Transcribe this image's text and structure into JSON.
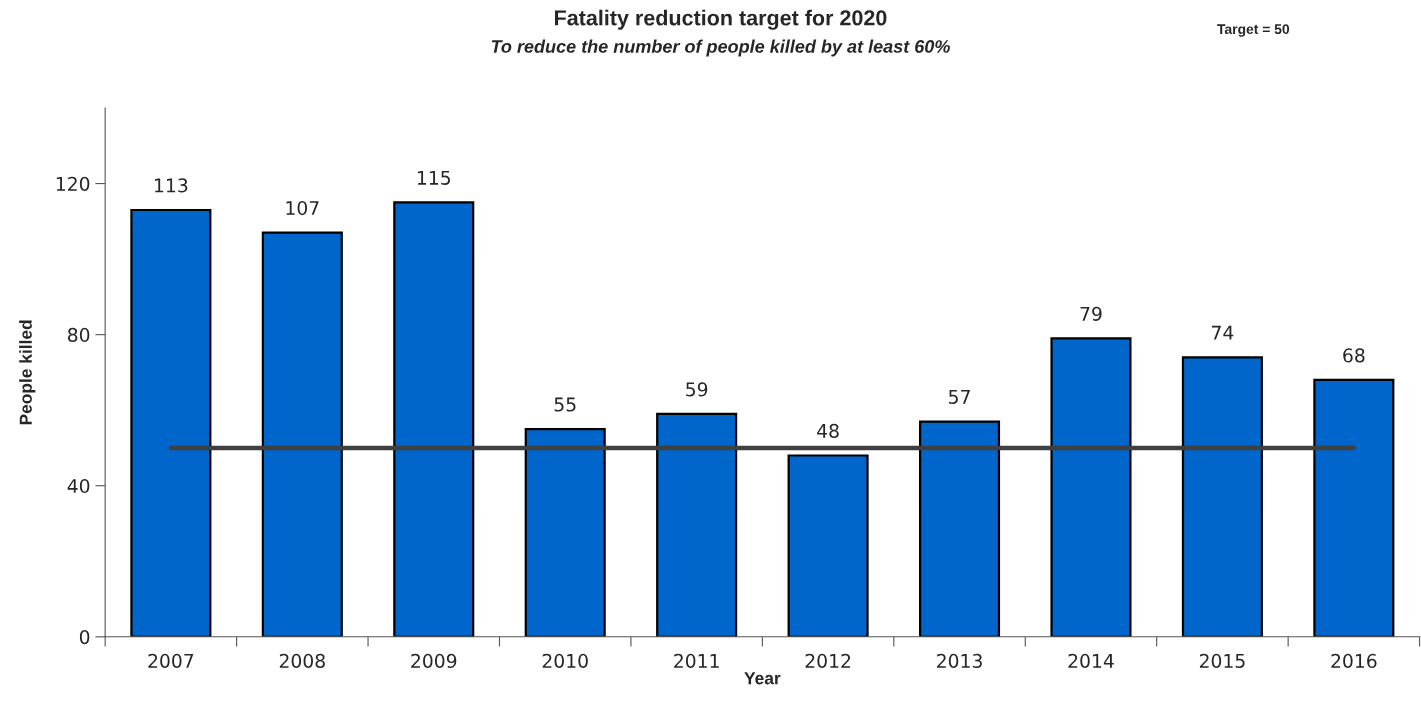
{
  "chart_data": {
    "type": "bar",
    "title": "Fatality reduction target for 2020",
    "subtitle": "To reduce the number of people killed by at least 60%",
    "xlabel": "Year",
    "ylabel": "People killed",
    "annotations": [
      "Target = 50"
    ],
    "categories": [
      "2007",
      "2008",
      "2009",
      "2010",
      "2011",
      "2012",
      "2013",
      "2014",
      "2015",
      "2016"
    ],
    "series": [
      {
        "color": "#0066cc",
        "values": [
          113,
          107,
          115,
          55,
          59,
          48,
          57,
          79,
          74,
          68
        ],
        "value_labels": [
          "113",
          "107",
          "115",
          "55",
          "59",
          "48",
          "57",
          "79",
          "74",
          "68"
        ]
      },
      {
        "type": "line",
        "color": "#404040",
        "values": [
          50,
          50,
          50,
          50,
          50,
          50,
          50,
          50,
          50,
          50
        ]
      }
    ],
    "ylim": [
      0,
      140
    ],
    "yticks": [
      0,
      40,
      80,
      120
    ]
  }
}
